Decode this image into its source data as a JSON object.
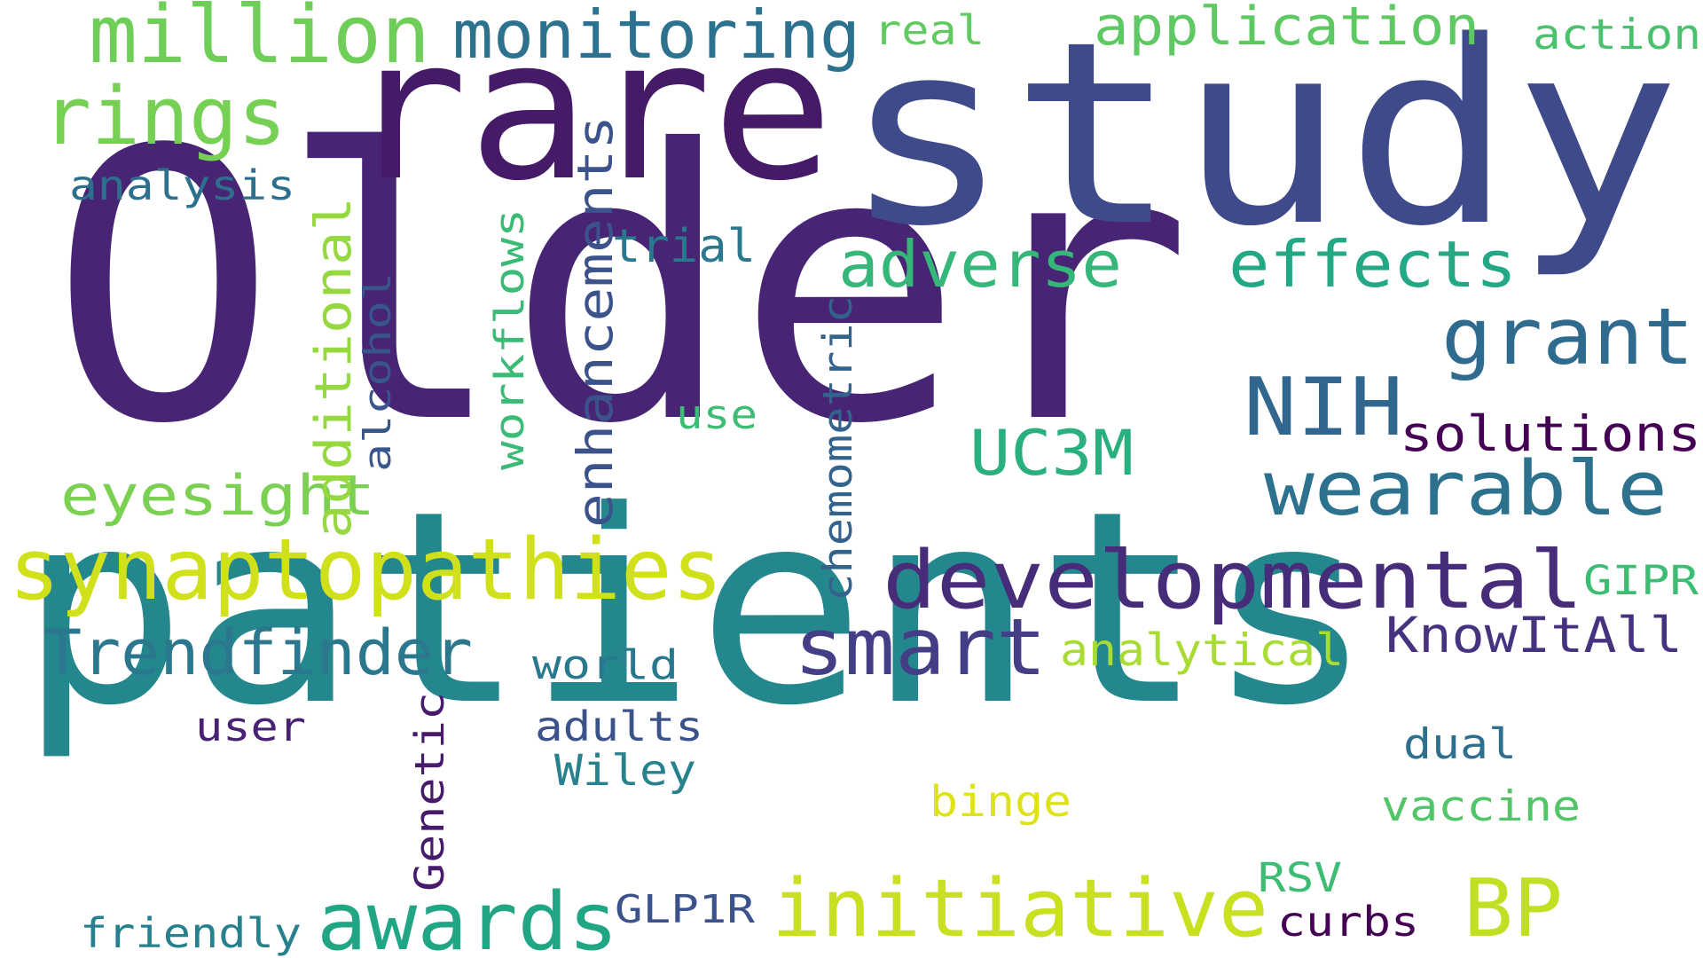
{
  "words": [
    {
      "text": "Older",
      "color": "#482474",
      "rotated": false
    },
    {
      "text": "patients",
      "color": "#24878e",
      "rotated": false
    },
    {
      "text": "study",
      "color": "#3e4a89",
      "rotated": false
    },
    {
      "text": "rare",
      "color": "#451a66",
      "rotated": false
    },
    {
      "text": "synaptopathies",
      "color": "#d0e11c",
      "rotated": false
    },
    {
      "text": "developmental",
      "color": "#472c7a",
      "rotated": false
    },
    {
      "text": "initiative",
      "color": "#c8e020",
      "rotated": false
    },
    {
      "text": "million",
      "color": "#6ece58",
      "rotated": false
    },
    {
      "text": "wearable",
      "color": "#2c728e",
      "rotated": false
    },
    {
      "text": "awards",
      "color": "#21a685",
      "rotated": false
    },
    {
      "text": "rings",
      "color": "#75d054",
      "rotated": false
    },
    {
      "text": "grant",
      "color": "#2e6b8e",
      "rotated": false
    },
    {
      "text": "smart",
      "color": "#433e85",
      "rotated": false
    },
    {
      "text": "NIH",
      "color": "#31668e",
      "rotated": false
    },
    {
      "text": "effects",
      "color": "#22a884",
      "rotated": false
    },
    {
      "text": "adverse",
      "color": "#35b779",
      "rotated": false
    },
    {
      "text": "monitoring",
      "color": "#2c718e",
      "rotated": false
    },
    {
      "text": "Trendfinder",
      "color": "#2a778e",
      "rotated": false
    },
    {
      "text": "BP",
      "color": "#c2df23",
      "rotated": false
    },
    {
      "text": "UC3M",
      "color": "#2ab07f",
      "rotated": false
    },
    {
      "text": "application",
      "color": "#5ec962",
      "rotated": false
    },
    {
      "text": "solutions",
      "color": "#440154",
      "rotated": false
    },
    {
      "text": "KnowItAll",
      "color": "#46327e",
      "rotated": false
    },
    {
      "text": "eyesight",
      "color": "#7ad151",
      "rotated": false
    },
    {
      "text": "enhancements",
      "color": "#3b528b",
      "rotated": true
    },
    {
      "text": "additional",
      "color": "#95d840",
      "rotated": true
    },
    {
      "text": "workflows",
      "color": "#3bbb75",
      "rotated": true
    },
    {
      "text": "alcohol",
      "color": "#39568c",
      "rotated": true
    },
    {
      "text": "chemometric",
      "color": "#33638d",
      "rotated": true
    },
    {
      "text": "Genetic",
      "color": "#481a6c",
      "rotated": true
    },
    {
      "text": "action",
      "color": "#4ac16d",
      "rotated": false
    },
    {
      "text": "real",
      "color": "#60ca60",
      "rotated": false
    },
    {
      "text": "analysis",
      "color": "#2d708e",
      "rotated": false
    },
    {
      "text": "trial",
      "color": "#2a788e",
      "rotated": false
    },
    {
      "text": "use",
      "color": "#3dbc74",
      "rotated": false
    },
    {
      "text": "analytical",
      "color": "#a8db34",
      "rotated": false
    },
    {
      "text": "GIPR",
      "color": "#3dbc74",
      "rotated": false
    },
    {
      "text": "world",
      "color": "#2a788e",
      "rotated": false
    },
    {
      "text": "user",
      "color": "#482173",
      "rotated": false
    },
    {
      "text": "adults",
      "color": "#3b528b",
      "rotated": false
    },
    {
      "text": "Wiley",
      "color": "#26828e",
      "rotated": false
    },
    {
      "text": "dual",
      "color": "#2e6f8e",
      "rotated": false
    },
    {
      "text": "binge",
      "color": "#dde318",
      "rotated": false
    },
    {
      "text": "vaccine",
      "color": "#52c569",
      "rotated": false
    },
    {
      "text": "RSV",
      "color": "#3dbc74",
      "rotated": false
    },
    {
      "text": "GLP1R",
      "color": "#3b528b",
      "rotated": false
    },
    {
      "text": "curbs",
      "color": "#440154",
      "rotated": false
    },
    {
      "text": "friendly",
      "color": "#27808e",
      "rotated": false
    }
  ]
}
